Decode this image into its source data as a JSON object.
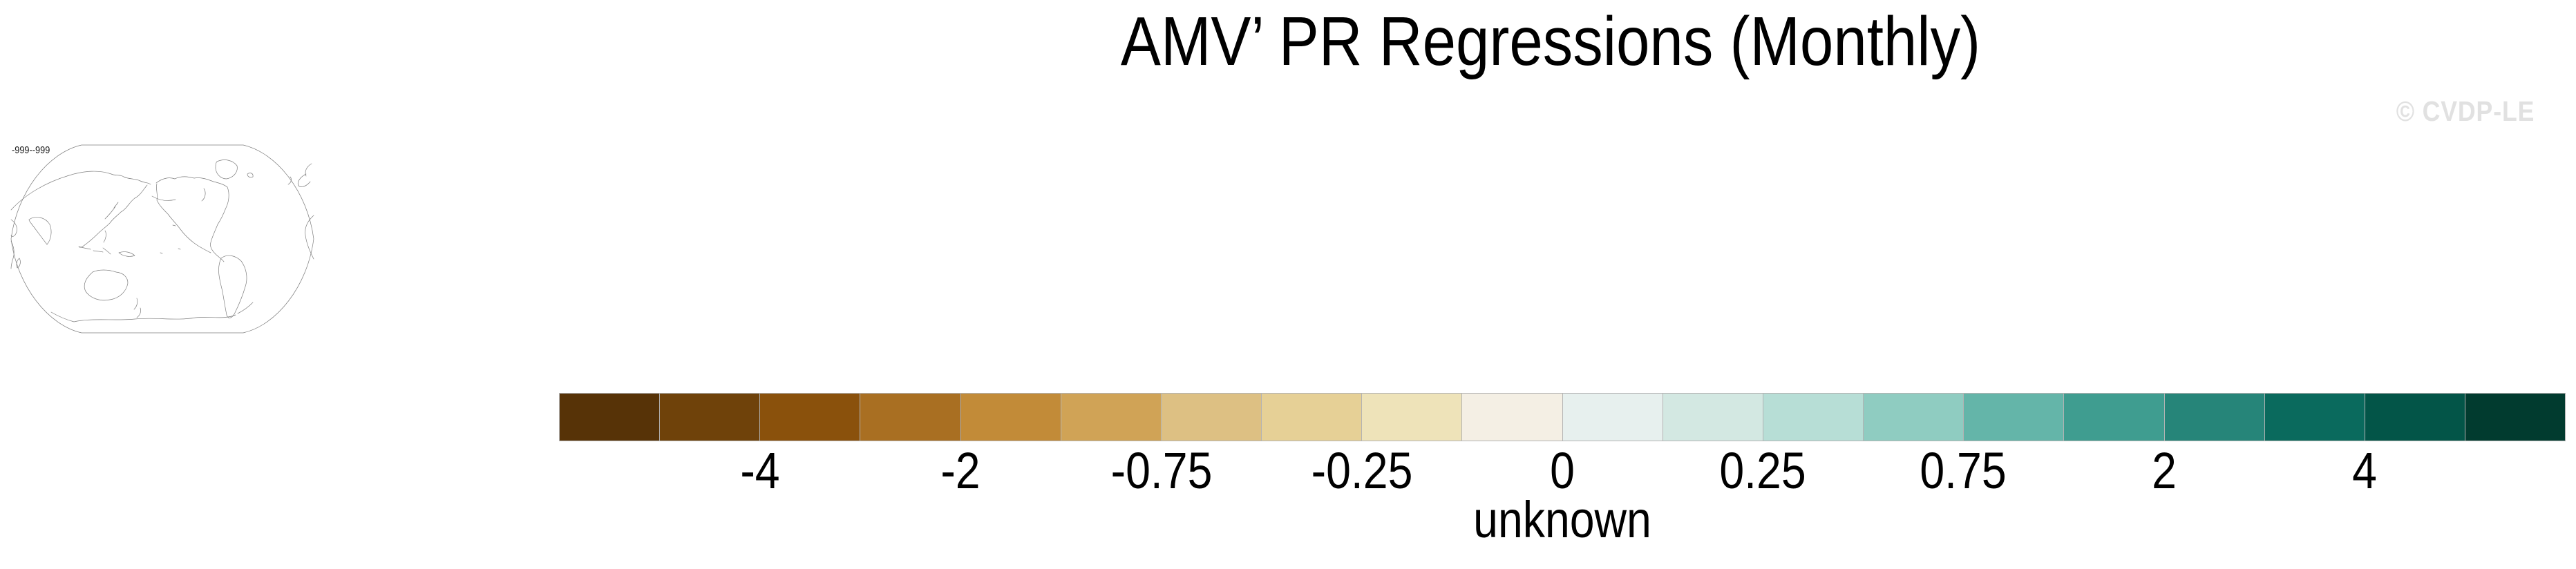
{
  "title": "AMV’ PR Regressions (Monthly)",
  "watermark": "© CVDP-LE",
  "map_thumbnail": {
    "range_label": "-999--999",
    "projection": "robinson-pacific-centered",
    "outline_color": "#7d7d7d"
  },
  "chart_data": {
    "type": "heatmap",
    "title": "AMV’ PR Regressions (Monthly)",
    "map_min_max_label": "-999--999",
    "legend_position": "bottom",
    "colorbar": {
      "n_segments": 20,
      "tick_labels": [
        "-4",
        "-2",
        "-0.75",
        "-0.25",
        "0",
        "0.25",
        "0.75",
        "2",
        "4"
      ],
      "labeled_boundary_indices": [
        2,
        4,
        6,
        8,
        10,
        12,
        14,
        16,
        18
      ],
      "units_label": "unknown",
      "border_color": "#b3b3b3",
      "colors": [
        "#573307",
        "#6f420a",
        "#8a510c",
        "#a96f22",
        "#c28b38",
        "#d0a356",
        "#ddc083",
        "#e6d096",
        "#eee3b9",
        "#f4efe4",
        "#e7f0ee",
        "#d3e8e2",
        "#b7ded6",
        "#8fccc1",
        "#64b5a9",
        "#3f9d90",
        "#268579",
        "#0a6a5d",
        "#035548",
        "#013b2f"
      ]
    },
    "text_color": "#000000",
    "watermark_color": "#e1e1e1"
  }
}
